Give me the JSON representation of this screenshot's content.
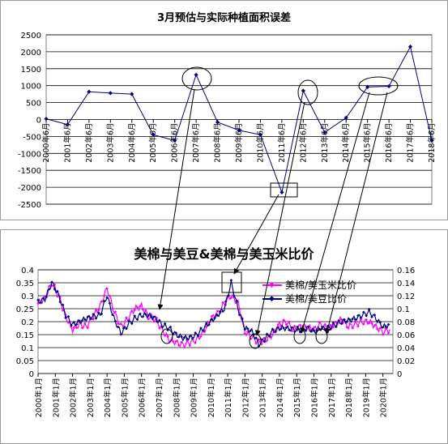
{
  "chart_data": [
    {
      "type": "line",
      "title": "3月预估与实际种植面积误差",
      "categories": [
        "2000年6月",
        "2001年6月",
        "2002年6月",
        "2003年6月",
        "2004年6月",
        "2005年6月",
        "2006年6月",
        "2007年6月",
        "2008年6月",
        "2009年6月",
        "2010年6月",
        "2011年6月",
        "2012年6月",
        "2013年6月",
        "2014年6月",
        "2015年6月",
        "2016年6月",
        "2017年6月",
        "2018年6月"
      ],
      "series": [
        {
          "values": [
            20,
            -150,
            820,
            780,
            750,
            -450,
            -620,
            1320,
            -80,
            -320,
            -450,
            -2150,
            850,
            -380,
            50,
            960,
            980,
            2150,
            -620
          ]
        }
      ],
      "ylim": [
        -2500,
        2500
      ],
      "yticks": [
        "2500",
        "2000",
        "1500",
        "1000",
        "500",
        "0",
        "-500",
        "-1000",
        "-1500",
        "-2000",
        "-2500"
      ],
      "colors": {
        "series": "#000080"
      }
    },
    {
      "type": "line",
      "title": "美棉与美豆&美棉与美玉米比价",
      "x_range": [
        "2000年1月",
        "2020年6月"
      ],
      "xticks": [
        "2000年1月",
        "2001年1月",
        "2002年1月",
        "2003年1月",
        "2004年1月",
        "2005年1月",
        "2006年1月",
        "2007年1月",
        "2008年1月",
        "2009年1月",
        "2010年1月",
        "2011年1月",
        "2012年1月",
        "2013年1月",
        "2014年1月",
        "2015年1月",
        "2016年1月",
        "2017年1月",
        "2018年1月",
        "2019年1月",
        "2020年1月"
      ],
      "y_left": {
        "lim": [
          0,
          0.4
        ],
        "ticks": [
          "0.4",
          "0.35",
          "0.3",
          "0.25",
          "0.2",
          "0.15",
          "0.1",
          "0.05",
          "0"
        ]
      },
      "y_right": {
        "lim": [
          0,
          0.16
        ],
        "ticks": [
          "0.16",
          "0.14",
          "0.12",
          "0.1",
          "0.08",
          "0.06",
          "0.04",
          "0.02",
          "0"
        ]
      },
      "legend_position": "top-right",
      "series": [
        {
          "name": "美棉/美玉米比价",
          "axis": "left",
          "color": "#ff00ff",
          "x": [
            2000.0,
            2000.4,
            2000.8,
            2001.2,
            2001.6,
            2002.0,
            2002.4,
            2002.8,
            2003.2,
            2003.6,
            2004.0,
            2004.4,
            2004.8,
            2005.2,
            2005.6,
            2006.0,
            2006.4,
            2006.8,
            2007.2,
            2007.6,
            2008.0,
            2008.4,
            2008.8,
            2009.2,
            2009.6,
            2010.0,
            2010.4,
            2010.8,
            2011.2,
            2011.6,
            2012.0,
            2012.4,
            2012.8,
            2013.2,
            2013.6,
            2014.0,
            2014.4,
            2014.8,
            2015.2,
            2015.6,
            2016.0,
            2016.4,
            2016.8,
            2017.2,
            2017.6,
            2018.0,
            2018.4,
            2018.8,
            2019.2,
            2019.6,
            2020.0,
            2020.4
          ],
          "y": [
            0.27,
            0.29,
            0.35,
            0.3,
            0.22,
            0.17,
            0.19,
            0.18,
            0.22,
            0.26,
            0.33,
            0.24,
            0.18,
            0.21,
            0.25,
            0.26,
            0.22,
            0.21,
            0.17,
            0.13,
            0.12,
            0.11,
            0.12,
            0.13,
            0.16,
            0.21,
            0.23,
            0.27,
            0.3,
            0.27,
            0.16,
            0.14,
            0.12,
            0.13,
            0.15,
            0.19,
            0.2,
            0.17,
            0.18,
            0.18,
            0.17,
            0.19,
            0.17,
            0.19,
            0.21,
            0.18,
            0.19,
            0.2,
            0.2,
            0.18,
            0.16,
            0.17
          ]
        },
        {
          "name": "美棉/美豆比价",
          "axis": "right",
          "color": "#000080",
          "x": [
            2000.0,
            2000.4,
            2000.8,
            2001.2,
            2001.6,
            2002.0,
            2002.4,
            2002.8,
            2003.2,
            2003.6,
            2004.0,
            2004.4,
            2004.8,
            2005.2,
            2005.6,
            2006.0,
            2006.4,
            2006.8,
            2007.2,
            2007.6,
            2008.0,
            2008.4,
            2008.8,
            2009.2,
            2009.6,
            2010.0,
            2010.4,
            2010.8,
            2011.2,
            2011.6,
            2012.0,
            2012.4,
            2012.8,
            2013.2,
            2013.6,
            2014.0,
            2014.4,
            2014.8,
            2015.2,
            2015.6,
            2016.0,
            2016.4,
            2016.8,
            2017.2,
            2017.6,
            2018.0,
            2018.4,
            2018.8,
            2019.2,
            2019.6,
            2020.0,
            2020.4
          ],
          "y": [
            0.11,
            0.115,
            0.14,
            0.12,
            0.09,
            0.075,
            0.08,
            0.085,
            0.088,
            0.09,
            0.12,
            0.085,
            0.062,
            0.075,
            0.085,
            0.09,
            0.09,
            0.085,
            0.075,
            0.07,
            0.06,
            0.055,
            0.055,
            0.06,
            0.07,
            0.08,
            0.09,
            0.1,
            0.14,
            0.1,
            0.07,
            0.065,
            0.045,
            0.055,
            0.065,
            0.07,
            0.07,
            0.068,
            0.068,
            0.07,
            0.065,
            0.07,
            0.07,
            0.075,
            0.08,
            0.082,
            0.085,
            0.09,
            0.095,
            0.085,
            0.072,
            0.075
          ]
        }
      ]
    }
  ]
}
